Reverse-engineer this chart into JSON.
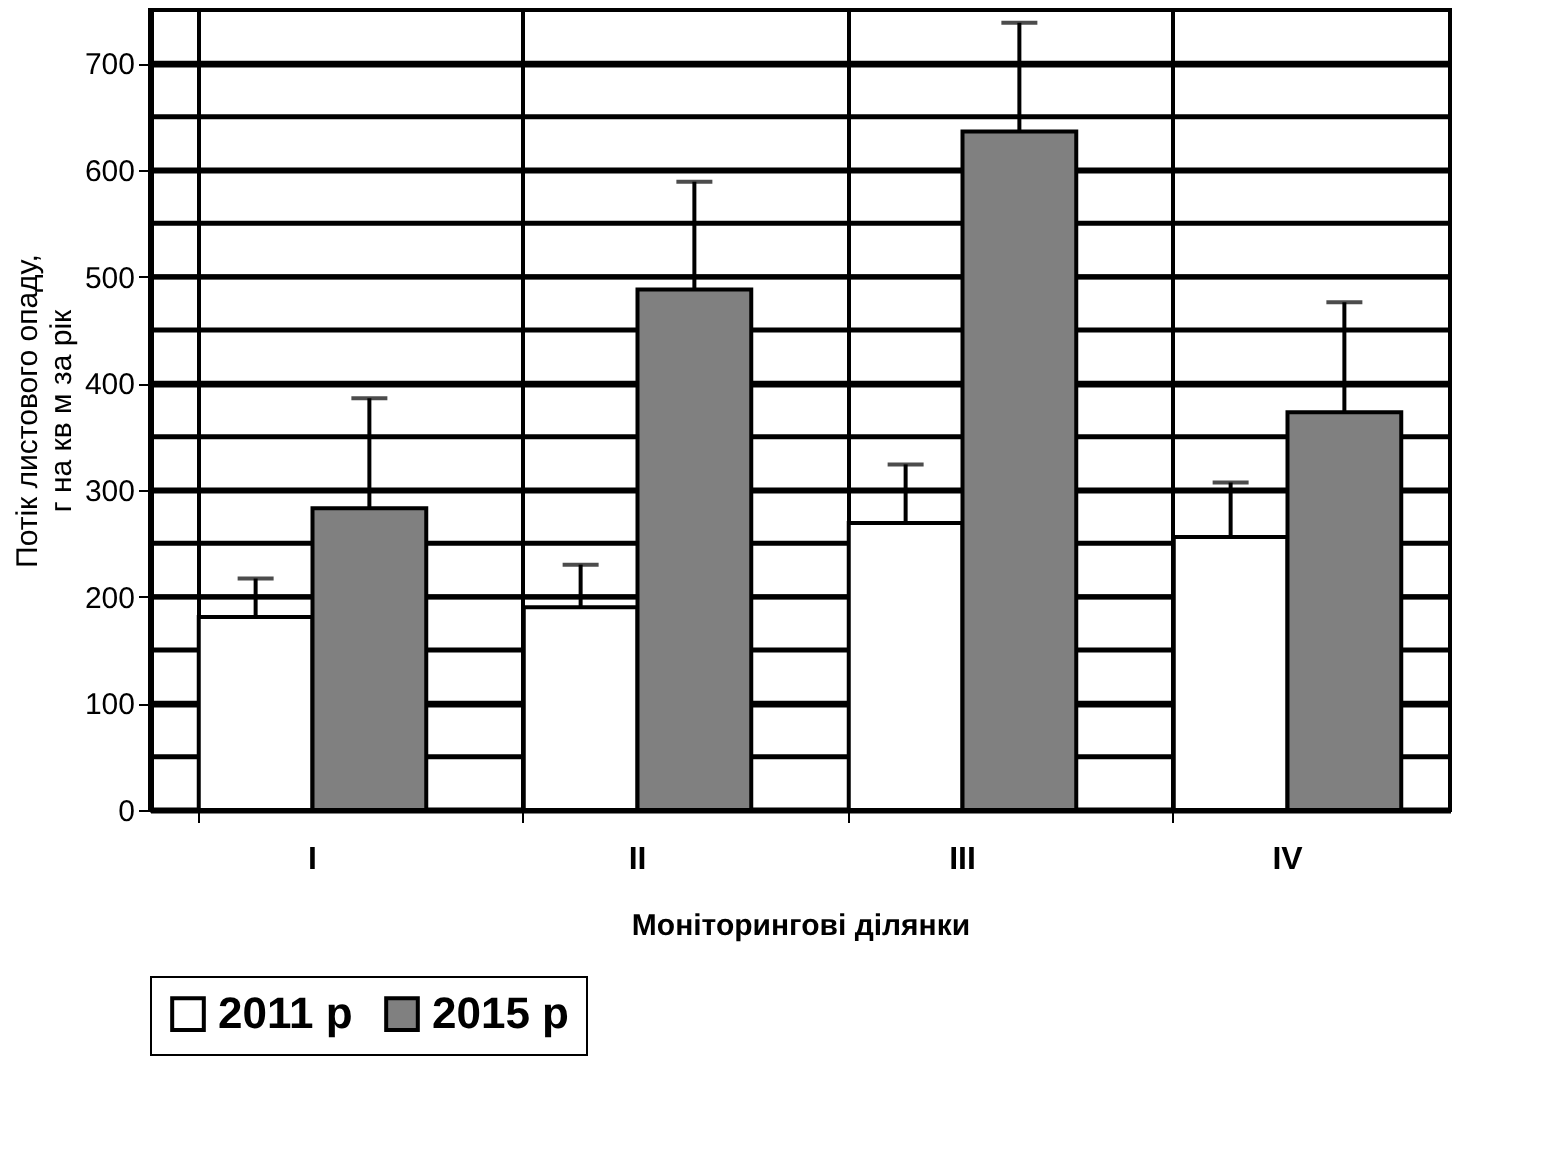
{
  "chart_data": {
    "type": "bar",
    "xlabel": "Моніторингові ділянки",
    "ylabel": "Потік листового опаду,\nг на кв м за рік",
    "categories": [
      "I",
      "II",
      "III",
      "IV"
    ],
    "series": [
      {
        "name": "2011 р",
        "color": "#ffffff",
        "values": [
          181,
          190,
          269,
          256
        ],
        "errors": [
          [
            181,
            217
          ],
          [
            190,
            230
          ],
          [
            269,
            324
          ],
          [
            256,
            307
          ]
        ]
      },
      {
        "name": "2015 р",
        "color": "#808080",
        "values": [
          283,
          488,
          636,
          373
        ],
        "errors": [
          [
            283,
            386
          ],
          [
            488,
            589
          ],
          [
            636,
            738
          ],
          [
            373,
            476
          ]
        ]
      }
    ],
    "ylim": [
      0,
      750
    ],
    "yticks": [
      0,
      {
        "value": 50,
        "label": null
      },
      100,
      {
        "value": 150,
        "label": null
      },
      200,
      {
        "value": 250,
        "label": null
      },
      300,
      {
        "value": 350,
        "label": null
      },
      400,
      {
        "value": 450,
        "label": null
      },
      500,
      {
        "value": 550,
        "label": null
      },
      600,
      {
        "value": 650,
        "label": null
      },
      700
    ],
    "grid": true,
    "legend": "bottom"
  }
}
